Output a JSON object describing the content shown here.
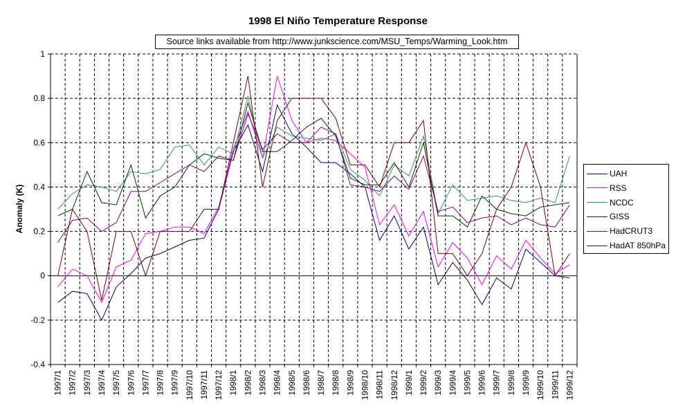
{
  "chart_data": {
    "type": "line",
    "title": "1998  El Niño Temperature Response",
    "subtitle": "Source links available from http://www.junkscience.com/MSU_Temps/Warming_Look.htm",
    "xlabel": "",
    "ylabel": "Anomaly (K)",
    "ylim": [
      -0.4,
      1.0
    ],
    "yticks": [
      1,
      0.8,
      0.6,
      0.4,
      0.2,
      0,
      -0.2,
      -0.4
    ],
    "ytick_labels": [
      "1",
      "0.8",
      "0.6",
      "0.4",
      "0.2",
      "0",
      "-0.2",
      "-0.4"
    ],
    "grid": true,
    "legend_position": "right",
    "categories": [
      "1997/1",
      "1997/2",
      "1997/3",
      "1997/4",
      "1997/5",
      "1997/6",
      "1997/7",
      "1997/8",
      "1997/9",
      "1997/10",
      "1997/11",
      "1997/12",
      "1998/1",
      "1998/2",
      "1998/3",
      "1998/4",
      "1998/5",
      "1998/6",
      "1998/7",
      "1998/8",
      "1998/9",
      "1998/10",
      "1998/11",
      "1998/12",
      "1999/1",
      "1999/2",
      "1999/3",
      "1999/4",
      "1999/5",
      "1999/6",
      "1999/7",
      "1999/8",
      "1999/9",
      "1999/10",
      "1999/11",
      "1999/12"
    ],
    "series": [
      {
        "name": "UAH",
        "color": "#000080",
        "values": [
          -0.12,
          -0.07,
          -0.08,
          -0.2,
          -0.05,
          0.01,
          0.08,
          0.1,
          0.13,
          0.16,
          0.17,
          0.3,
          0.56,
          0.68,
          0.47,
          0.77,
          0.64,
          0.58,
          0.51,
          0.51,
          0.46,
          0.4,
          0.16,
          0.27,
          0.12,
          0.22,
          -0.04,
          0.06,
          -0.02,
          -0.13,
          -0.01,
          -0.06,
          0.12,
          0.06,
          0.0,
          -0.01
        ]
      },
      {
        "name": "RSS",
        "color": "#ff00ff",
        "values": [
          -0.05,
          0.03,
          0.0,
          -0.12,
          0.04,
          0.07,
          0.19,
          0.2,
          0.22,
          0.22,
          0.19,
          0.31,
          0.57,
          0.74,
          0.53,
          0.9,
          0.7,
          0.6,
          0.62,
          0.61,
          0.55,
          0.49,
          0.23,
          0.32,
          0.18,
          0.29,
          0.04,
          0.15,
          0.08,
          -0.04,
          0.09,
          0.03,
          0.16,
          0.08,
          0.01,
          0.05
        ]
      },
      {
        "name": "NCDC",
        "color": "#339966",
        "values": [
          0.3,
          0.37,
          0.41,
          0.4,
          0.38,
          0.47,
          0.46,
          0.48,
          0.58,
          0.59,
          0.5,
          0.58,
          0.55,
          0.81,
          0.53,
          0.67,
          0.63,
          0.62,
          0.61,
          0.64,
          0.48,
          0.43,
          0.36,
          0.5,
          0.45,
          0.63,
          0.28,
          0.41,
          0.34,
          0.35,
          0.36,
          0.34,
          0.33,
          0.35,
          0.33,
          0.54
        ]
      },
      {
        "name": "GISS",
        "color": "#003300",
        "values": [
          0.27,
          0.3,
          0.47,
          0.33,
          0.32,
          0.5,
          0.26,
          0.36,
          0.4,
          0.5,
          0.55,
          0.53,
          0.52,
          0.78,
          0.56,
          0.56,
          0.61,
          0.67,
          0.71,
          0.63,
          0.44,
          0.41,
          0.41,
          0.51,
          0.4,
          0.6,
          0.27,
          0.27,
          0.22,
          0.36,
          0.3,
          0.28,
          0.27,
          0.31,
          0.32,
          0.33
        ]
      },
      {
        "name": "HadCRUT3",
        "color": "#800080",
        "values": [
          0.15,
          0.25,
          0.26,
          0.2,
          0.24,
          0.38,
          0.38,
          0.42,
          0.46,
          0.5,
          0.47,
          0.54,
          0.52,
          0.73,
          0.57,
          0.64,
          0.6,
          0.6,
          0.67,
          0.64,
          0.41,
          0.4,
          0.38,
          0.45,
          0.39,
          0.54,
          0.29,
          0.31,
          0.24,
          0.26,
          0.27,
          0.23,
          0.26,
          0.23,
          0.22,
          0.32
        ]
      },
      {
        "name": "HadAT 850hPa",
        "color": "#800000",
        "values": [
          0.0,
          0.3,
          0.2,
          -0.11,
          0.2,
          0.2,
          0.0,
          0.2,
          0.2,
          0.2,
          0.3,
          0.3,
          0.6,
          0.9,
          0.4,
          0.7,
          0.8,
          0.8,
          0.8,
          0.71,
          0.5,
          0.5,
          0.4,
          0.6,
          0.6,
          0.7,
          0.1,
          0.1,
          0.0,
          0.1,
          0.3,
          0.4,
          0.6,
          0.4,
          0.0,
          0.1
        ]
      }
    ]
  }
}
